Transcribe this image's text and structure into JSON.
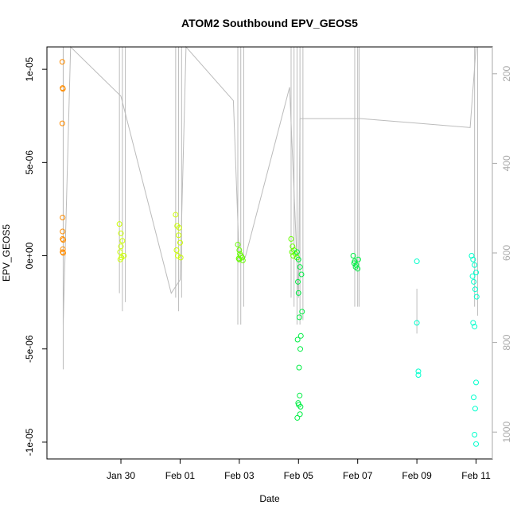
{
  "chart_data": {
    "type": "scatter",
    "title": "ATOM2 Southbound EPV_GEOS5",
    "xlabel": "Date",
    "ylabel": "EPV_GEOS5",
    "x_ticks": [
      "Jan 30",
      "Feb 01",
      "Feb 03",
      "Feb 05",
      "Feb 07",
      "Feb 09",
      "Feb 11"
    ],
    "x_tick_values": [
      2,
      4,
      6,
      8,
      10,
      12,
      14
    ],
    "xlim": [
      -0.5,
      14.55
    ],
    "y_ticks": [
      "1e-05",
      "5e-06",
      "0e+00",
      "-5e-06",
      "-1e-05"
    ],
    "y_tick_values": [
      1e-05,
      5e-06,
      0,
      -5e-06,
      -1e-05
    ],
    "ylim": [
      -1.09e-05,
      1.12e-05
    ],
    "y2_ticks": [
      "200",
      "400",
      "600",
      "800",
      "1000"
    ],
    "y2_tick_values": [
      200,
      400,
      600,
      800,
      1000
    ],
    "y2lim": [
      1060,
      140
    ],
    "colors": {
      "axis": "#000000",
      "pressure_line": "#bbbbbb",
      "right_axis": "#aaaaaa"
    },
    "point_series": [
      {
        "color": "#ff8c00",
        "x": [
          0.02,
          0.03,
          0.04,
          0.02,
          0.03,
          0.03,
          0.03,
          0.05,
          0.04,
          0.03,
          0.05
        ],
        "y": [
          1.04e-05,
          9e-06,
          8.95e-06,
          7.1e-06,
          2.05e-06,
          1.3e-06,
          9e-07,
          8.5e-07,
          3.5e-07,
          2e-07,
          1.5e-07
        ]
      },
      {
        "color": "#ccff00",
        "x": [
          1.95,
          2.0,
          2.05,
          2.0,
          1.97,
          2.1,
          2.02,
          1.98,
          3.85,
          3.9,
          3.95,
          4.0,
          3.88,
          3.92,
          4.02,
          3.97
        ],
        "y": [
          1.7e-06,
          1.2e-06,
          8e-07,
          5e-07,
          2e-07,
          0,
          -1e-07,
          -2e-07,
          2.2e-06,
          1.6e-06,
          1.1e-06,
          7e-07,
          3e-07,
          0,
          -1e-07,
          1.5e-06
        ]
      },
      {
        "color": "#66ff00",
        "x": [
          5.95,
          6.0,
          6.05,
          6.1,
          6.0,
          6.12,
          5.98,
          6.02,
          7.75,
          7.8,
          7.85,
          7.9,
          7.82,
          7.95,
          7.78
        ],
        "y": [
          6e-07,
          3e-07,
          0,
          -1e-07,
          -2e-07,
          -2.5e-07,
          -1.5e-07,
          1e-07,
          9e-07,
          5e-07,
          3e-07,
          1e-07,
          0,
          -1e-07,
          2e-07
        ]
      },
      {
        "color": "#00ee44",
        "x": [
          7.95,
          8.0,
          8.05,
          8.1,
          7.98,
          8.0,
          8.12,
          8.03,
          8.08,
          7.97,
          8.06,
          8.02,
          8.04,
          7.99,
          8.01,
          8.07,
          8.05,
          7.96,
          9.85,
          9.9,
          9.95,
          10.0,
          9.88,
          9.93,
          10.02
        ],
        "y": [
          2e-07,
          -2e-07,
          -6e-07,
          -1e-06,
          -1.4e-06,
          -2e-06,
          -3e-06,
          -3.3e-06,
          -4.3e-06,
          -4.5e-06,
          -5e-06,
          -6e-06,
          -7.5e-06,
          -7.9e-06,
          -8e-06,
          -8.1e-06,
          -8.5e-06,
          -8.7e-06,
          0,
          -3e-07,
          -5e-07,
          -7e-07,
          -4e-07,
          -6e-07,
          -2e-07
        ]
      },
      {
        "color": "#00ffcc",
        "x": [
          12.0,
          12.0,
          12.05,
          12.05,
          13.85,
          13.9,
          13.95,
          14.0,
          13.88,
          13.92,
          13.97,
          14.02,
          13.9,
          13.95,
          14.0,
          13.92,
          13.97,
          13.95,
          14.0
        ],
        "y": [
          -3e-07,
          -3.6e-06,
          -6.2e-06,
          -6.4e-06,
          0,
          -2e-07,
          -5e-07,
          -9e-07,
          -1.1e-06,
          -1.4e-06,
          -1.8e-06,
          -2.2e-06,
          -3.6e-06,
          -3.8e-06,
          -6.8e-06,
          -7.6e-06,
          -8.2e-06,
          -9.6e-06,
          -1.01e-05
        ]
      }
    ],
    "pressure_path": {
      "x": [
        0.05,
        0.05,
        0.3,
        2.0,
        3.7,
        4.0,
        4.2,
        5.8,
        6.0,
        6.2,
        7.7,
        8.0,
        8.05,
        10.0,
        10.1,
        13.8,
        14.0
      ],
      "y": [
        120,
        760,
        120,
        250,
        690,
        660,
        120,
        260,
        620,
        610,
        230,
        700,
        300,
        300,
        300,
        320,
        120
      ]
    },
    "profiles": [
      {
        "x": 0.05,
        "top": 140,
        "bottom": 860
      },
      {
        "x": 1.95,
        "top": 140,
        "bottom": 690
      },
      {
        "x": 2.05,
        "top": 140,
        "bottom": 730
      },
      {
        "x": 2.15,
        "top": 140,
        "bottom": 710
      },
      {
        "x": 3.85,
        "top": 140,
        "bottom": 700
      },
      {
        "x": 3.95,
        "top": 140,
        "bottom": 730
      },
      {
        "x": 4.05,
        "top": 140,
        "bottom": 700
      },
      {
        "x": 5.95,
        "top": 140,
        "bottom": 760
      },
      {
        "x": 6.05,
        "top": 140,
        "bottom": 760
      },
      {
        "x": 6.15,
        "top": 140,
        "bottom": 720
      },
      {
        "x": 7.75,
        "top": 140,
        "bottom": 700
      },
      {
        "x": 7.85,
        "top": 140,
        "bottom": 720
      },
      {
        "x": 7.95,
        "top": 140,
        "bottom": 760
      },
      {
        "x": 8.05,
        "top": 140,
        "bottom": 760
      },
      {
        "x": 8.15,
        "top": 140,
        "bottom": 750
      },
      {
        "x": 9.9,
        "top": 140,
        "bottom": 720
      },
      {
        "x": 10.0,
        "top": 140,
        "bottom": 720
      },
      {
        "x": 10.05,
        "top": 140,
        "bottom": 720
      },
      {
        "x": 12.0,
        "top": 680,
        "bottom": 780
      },
      {
        "x": 13.95,
        "top": 140,
        "bottom": 720
      },
      {
        "x": 14.05,
        "top": 140,
        "bottom": 740
      }
    ]
  }
}
